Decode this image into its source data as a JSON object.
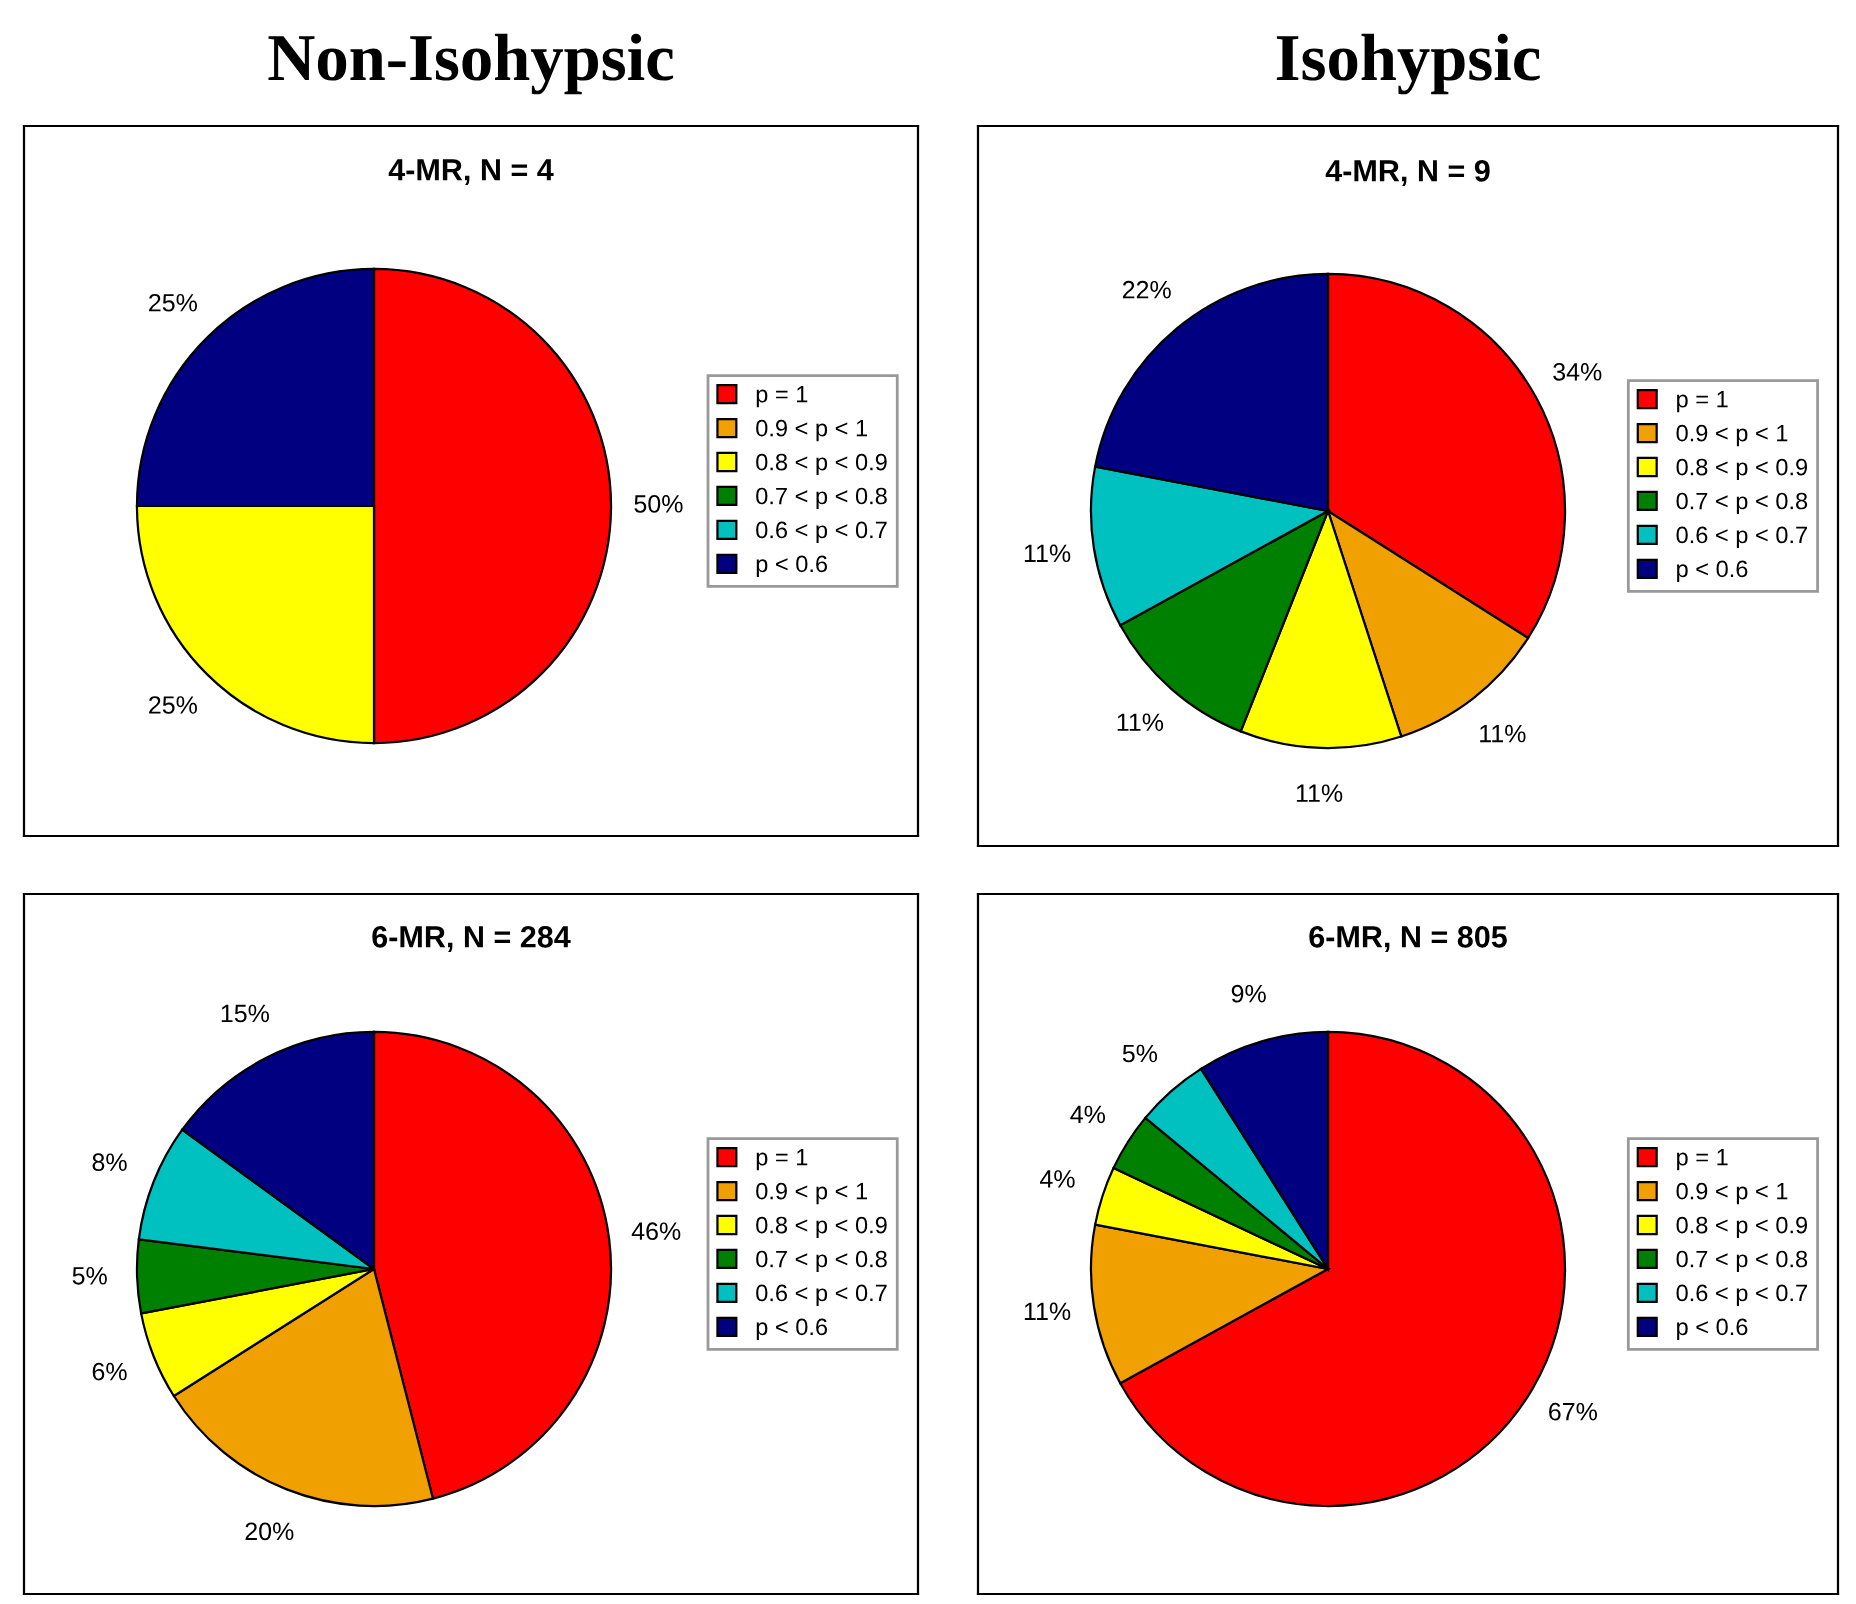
{
  "chart_data": [
    {
      "type": "pie",
      "title": "4-MR, N = 4",
      "annotations": [
        "Non-Isohypsic"
      ],
      "categories": [
        "p = 1",
        "0.9 < p < 1",
        "0.8 < p < 0.9",
        "0.7 < p < 0.8",
        "0.6 < p < 0.7",
        "p < 0.6"
      ],
      "values": [
        50,
        0,
        25,
        0,
        0,
        25
      ],
      "value_labels": [
        "50%",
        null,
        "25%",
        null,
        null,
        "25%"
      ],
      "colors": [
        "#ff0000",
        "#f0a000",
        "#ffff00",
        "#008000",
        "#00c0c0",
        "#000080"
      ],
      "legend": "right"
    },
    {
      "type": "pie",
      "title": "4-MR, N = 9",
      "annotations": [
        "Isohypsic"
      ],
      "categories": [
        "p = 1",
        "0.9 < p < 1",
        "0.8 < p < 0.9",
        "0.7 < p < 0.8",
        "0.6 < p < 0.7",
        "p < 0.6"
      ],
      "values": [
        34,
        11,
        11,
        11,
        11,
        22
      ],
      "value_labels": [
        "34%",
        "11%",
        "11%",
        "11%",
        "11%",
        "22%"
      ],
      "colors": [
        "#ff0000",
        "#f0a000",
        "#ffff00",
        "#008000",
        "#00c0c0",
        "#000080"
      ],
      "legend": "right"
    },
    {
      "type": "pie",
      "title": "6-MR, N = 284",
      "categories": [
        "p = 1",
        "0.9 < p < 1",
        "0.8 < p < 0.9",
        "0.7 < p < 0.8",
        "0.6 < p < 0.7",
        "p < 0.6"
      ],
      "values": [
        46,
        20,
        6,
        5,
        8,
        15
      ],
      "value_labels": [
        "46%",
        "20%",
        "6%",
        "5%",
        "8%",
        "15%"
      ],
      "colors": [
        "#ff0000",
        "#f0a000",
        "#ffff00",
        "#008000",
        "#00c0c0",
        "#000080"
      ],
      "legend": "right"
    },
    {
      "type": "pie",
      "title": "6-MR, N = 805",
      "categories": [
        "p = 1",
        "0.9 < p < 1",
        "0.8 < p < 0.9",
        "0.7 < p < 0.8",
        "0.6 < p < 0.7",
        "p < 0.6"
      ],
      "values": [
        67,
        11,
        4,
        4,
        5,
        9
      ],
      "value_labels": [
        "67%",
        "11%",
        "4%",
        "4%",
        "5%",
        "9%"
      ],
      "colors": [
        "#ff0000",
        "#f0a000",
        "#ffff00",
        "#008000",
        "#00c0c0",
        "#000080"
      ],
      "legend": "right"
    }
  ]
}
